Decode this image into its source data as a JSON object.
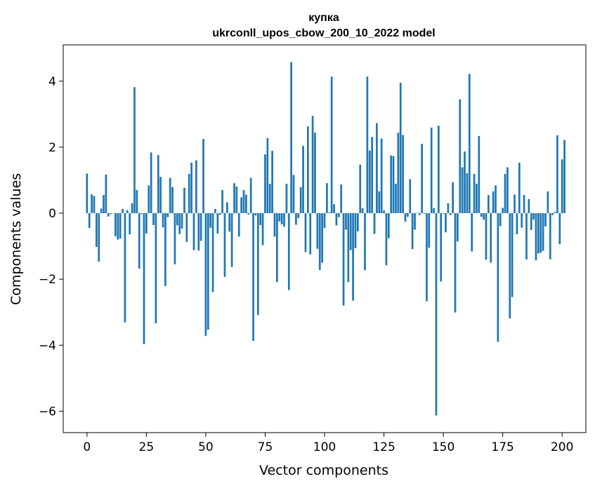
{
  "chart_data": {
    "type": "bar",
    "title": "купка",
    "subtitle": "ukrconll_upos_cbow_200_10_2022 model",
    "xlabel": "Vector components",
    "ylabel": "Components values",
    "xlim": [
      -10,
      210
    ],
    "ylim": [
      -6.65,
      5.1
    ],
    "xticks": [
      0,
      25,
      50,
      75,
      100,
      125,
      150,
      175,
      200
    ],
    "yticks": [
      -6,
      -4,
      -2,
      0,
      2,
      4
    ],
    "ytick_labels": [
      "−6",
      "−4",
      "−2",
      "0",
      "2",
      "4"
    ],
    "bar_color": "#1f77b4",
    "values": [
      1.2,
      -0.45,
      0.57,
      0.52,
      -1.02,
      -1.47,
      0.14,
      0.55,
      1.17,
      -0.1,
      -0.03,
      -0.01,
      -0.7,
      -0.8,
      -0.77,
      0.13,
      -3.31,
      0.09,
      -0.64,
      0.3,
      3.82,
      0.7,
      -1.68,
      -0.03,
      -3.97,
      -0.62,
      0.84,
      1.84,
      -0.36,
      -3.34,
      1.76,
      1.1,
      -0.43,
      -2.21,
      -0.12,
      1.07,
      0.79,
      -1.55,
      -0.37,
      -0.63,
      -0.47,
      0.77,
      -0.87,
      1.19,
      1.53,
      -1.12,
      1.6,
      -1.13,
      -0.84,
      2.25,
      -3.72,
      -3.53,
      -0.44,
      -2.39,
      0.13,
      -0.62,
      -0.05,
      0.7,
      -1.93,
      0.33,
      -0.56,
      -1.63,
      0.91,
      0.81,
      -0.71,
      0.48,
      0.7,
      0.56,
      -0.04,
      1.07,
      -3.87,
      -0.07,
      -3.09,
      -0.36,
      -0.97,
      1.78,
      2.28,
      0.89,
      1.89,
      -0.71,
      -2.09,
      -0.25,
      -0.34,
      -0.41,
      0.89,
      -2.33,
      4.58,
      1.16,
      -0.35,
      -0.15,
      0.79,
      2.04,
      -1.18,
      2.63,
      -1.25,
      2.95,
      2.44,
      -1.08,
      -1.72,
      -1.5,
      -0.45,
      0.91,
      0.02,
      4.14,
      0.27,
      -0.37,
      -0.12,
      0.87,
      -2.8,
      -0.5,
      -2.09,
      -1.12,
      -2.65,
      -1.06,
      -0.55,
      1.47,
      0.15,
      -1.73,
      4.14,
      1.9,
      2.31,
      -0.63,
      2.73,
      0.66,
      2.26,
      0.08,
      -1.58,
      -0.76,
      1.75,
      1.73,
      0.89,
      2.44,
      3.95,
      2.37,
      -0.26,
      -0.11,
      1.03,
      -1.09,
      -0.5,
      0.01,
      -0.06,
      2.1,
      -0.02,
      -2.67,
      -1.05,
      2.59,
      0.15,
      -6.13,
      2.65,
      -2.07,
      -0.02,
      -0.58,
      0.3,
      -0.06,
      0.94,
      -3.01,
      -0.86,
      3.45,
      1.39,
      1.87,
      1.21,
      4.22,
      -1.16,
      1.19,
      0.89,
      2.34,
      -0.11,
      -0.2,
      -1.41,
      0.55,
      -1.5,
      0.66,
      0.84,
      -3.9,
      -0.39,
      0.16,
      1.19,
      1.39,
      -3.19,
      -2.54,
      0.56,
      -0.64,
      1.53,
      -0.44,
      0.55,
      -1.4,
      0.43,
      -0.51,
      -0.2,
      -1.43,
      -1.22,
      -1.2,
      -1.14,
      -0.4,
      0.66,
      -1.4,
      -0.06,
      0.04,
      2.36,
      -0.94,
      1.63,
      2.22
    ]
  }
}
